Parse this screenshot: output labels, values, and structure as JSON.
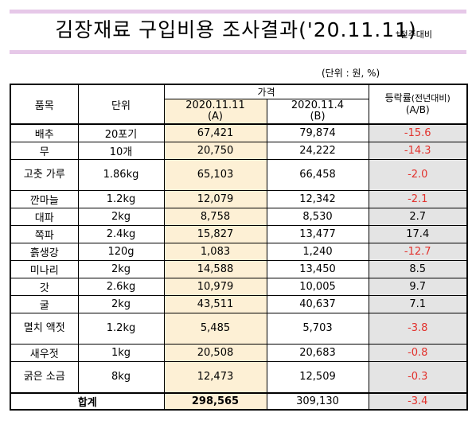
{
  "header": {
    "title": "김장재료 구입비용 조사결과('20.11.11)",
    "note": "*전주대비",
    "unit": "(단위 : 원, %)"
  },
  "table": {
    "col_item": "품목",
    "col_unit": "단위",
    "col_price": "가격",
    "col_current": "2020.11.11",
    "col_current_sub": "(A)",
    "col_previous": "2020.11.4",
    "col_previous_sub": "(B)",
    "col_rate": "등락률",
    "col_rate_note": "(전년대비)",
    "col_rate_sub": "(A/B)",
    "rows": [
      {
        "item": "배추",
        "unit": "20포기",
        "current": "67,421",
        "previous": "79,874",
        "rate": "-15.6",
        "tall": false
      },
      {
        "item": "무",
        "unit": "10개",
        "current": "20,750",
        "previous": "24,222",
        "rate": "-14.3",
        "tall": false
      },
      {
        "item": "고춧 가루",
        "unit": "1.86kg",
        "current": "65,103",
        "previous": "66,458",
        "rate": "-2.0",
        "tall": true
      },
      {
        "item": "깐마늘",
        "unit": "1.2kg",
        "current": "12,079",
        "previous": "12,342",
        "rate": "-2.1",
        "tall": false
      },
      {
        "item": "대파",
        "unit": "2kg",
        "current": "8,758",
        "previous": "8,530",
        "rate": "2.7",
        "tall": false
      },
      {
        "item": "쪽파",
        "unit": "2.4kg",
        "current": "15,827",
        "previous": "13,477",
        "rate": "17.4",
        "tall": false
      },
      {
        "item": "흙생강",
        "unit": "120g",
        "current": "1,083",
        "previous": "1,240",
        "rate": "-12.7",
        "tall": false
      },
      {
        "item": "미나리",
        "unit": "2kg",
        "current": "14,588",
        "previous": "13,450",
        "rate": "8.5",
        "tall": false
      },
      {
        "item": "갓",
        "unit": "2.6kg",
        "current": "10,979",
        "previous": "10,005",
        "rate": "9.7",
        "tall": false
      },
      {
        "item": "굴",
        "unit": "2kg",
        "current": "43,511",
        "previous": "40,637",
        "rate": "7.1",
        "tall": false
      },
      {
        "item": "멸치 액젓",
        "unit": "1.2kg",
        "current": "5,485",
        "previous": "5,703",
        "rate": "-3.8",
        "tall": true
      },
      {
        "item": "새우젓",
        "unit": "1kg",
        "current": "20,508",
        "previous": "20,683",
        "rate": "-0.8",
        "tall": false
      },
      {
        "item": "굵은 소금",
        "unit": "8kg",
        "current": "12,473",
        "previous": "12,509",
        "rate": "-0.3",
        "tall": true
      }
    ],
    "total": {
      "label": "합계",
      "current": "298,565",
      "previous": "309,130",
      "rate": "-3.4"
    }
  },
  "colors": {
    "negative": "#e2312c",
    "current_bg": "#fdf0d5",
    "rate_bg": "#e4e4e4",
    "band": "#e6c8e8"
  }
}
